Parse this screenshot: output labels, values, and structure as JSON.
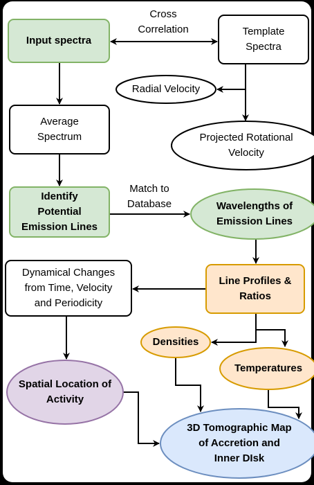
{
  "nodes": [
    {
      "lines": [
        "Input spectra"
      ]
    },
    {
      "lines": [
        "Template",
        "Spectra"
      ]
    },
    {
      "lines": [
        "Radial Velocity"
      ]
    },
    {
      "lines": [
        "Average",
        "Spectrum"
      ]
    },
    {
      "lines": [
        "Projected Rotational",
        "Velocity"
      ]
    },
    {
      "lines": [
        "Identify",
        "Potential",
        "Emission Lines"
      ]
    },
    {
      "lines": [
        "Wavelengths of",
        "Emission Lines"
      ]
    },
    {
      "lines": [
        "Dynamical Changes",
        "from Time, Velocity",
        "and Periodicity"
      ]
    },
    {
      "lines": [
        "Line Profiles &",
        "Ratios"
      ]
    },
    {
      "lines": [
        "Densities"
      ]
    },
    {
      "lines": [
        "Temperatures"
      ]
    },
    {
      "lines": [
        "Spatial Location of",
        "Activity"
      ]
    },
    {
      "lines": [
        "3D Tomographic Map",
        "of Accretion and",
        "Inner DIsk"
      ]
    }
  ],
  "edge_labels": [
    {
      "lines": [
        "Cross",
        "Correlation"
      ]
    },
    {
      "lines": [
        "Match to",
        "Database"
      ]
    }
  ]
}
